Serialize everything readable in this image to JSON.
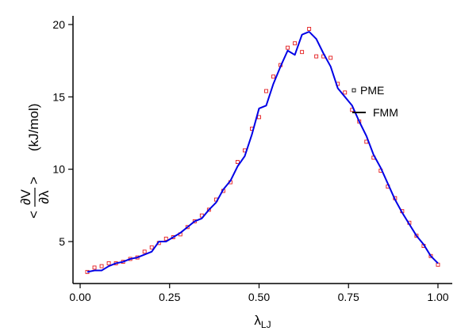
{
  "chart_data": {
    "type": "line",
    "xlabel": "λ",
    "xlabel_sub": "LJ",
    "ylabel_num": "∂V",
    "ylabel_den": "∂λ",
    "ylabel_lt": "<",
    "ylabel_gt": ">",
    "ylabel_units": "(kJ/mol)",
    "xlim": [
      -0.02,
      1.04
    ],
    "ylim": [
      2.1,
      20.6
    ],
    "xticks": [
      0,
      0.25,
      0.5,
      0.75,
      1
    ],
    "xtick_labels": [
      "0.00",
      "0.25",
      "0.50",
      "0.75",
      "1.00"
    ],
    "yticks": [
      5,
      10,
      15,
      20
    ],
    "ytick_labels": [
      "5",
      "10",
      "15",
      "20"
    ],
    "grid": false,
    "legend_position": "right",
    "series": [
      {
        "name": "PME",
        "style": "markers",
        "marker": "open-square",
        "color": "#e41a1c",
        "x": [
          0.02,
          0.04,
          0.06,
          0.08,
          0.1,
          0.12,
          0.14,
          0.16,
          0.18,
          0.2,
          0.22,
          0.24,
          0.26,
          0.28,
          0.3,
          0.32,
          0.34,
          0.36,
          0.38,
          0.4,
          0.42,
          0.44,
          0.46,
          0.48,
          0.5,
          0.52,
          0.54,
          0.56,
          0.58,
          0.6,
          0.62,
          0.64,
          0.66,
          0.68,
          0.7,
          0.72,
          0.74,
          0.76,
          0.78,
          0.8,
          0.82,
          0.84,
          0.86,
          0.88,
          0.9,
          0.92,
          0.94,
          0.96,
          0.98,
          1.0
        ],
        "y": [
          2.9,
          3.2,
          3.3,
          3.5,
          3.5,
          3.6,
          3.8,
          3.9,
          4.3,
          4.6,
          4.9,
          5.2,
          5.3,
          5.5,
          6.0,
          6.4,
          6.8,
          7.2,
          7.9,
          8.5,
          9.1,
          10.5,
          11.3,
          12.8,
          13.6,
          15.4,
          16.4,
          17.2,
          18.4,
          18.7,
          18.1,
          19.7,
          17.8,
          17.8,
          17.7,
          15.9,
          15.3,
          14.1,
          13.3,
          11.9,
          10.8,
          9.9,
          8.8,
          8.0,
          7.1,
          6.3,
          5.4,
          4.7,
          4.0,
          3.4
        ]
      },
      {
        "name": "FMM",
        "style": "line",
        "color": "#0000e6",
        "x": [
          0.02,
          0.04,
          0.06,
          0.08,
          0.1,
          0.12,
          0.14,
          0.16,
          0.18,
          0.2,
          0.22,
          0.24,
          0.26,
          0.28,
          0.3,
          0.32,
          0.34,
          0.36,
          0.38,
          0.4,
          0.42,
          0.44,
          0.46,
          0.48,
          0.5,
          0.52,
          0.54,
          0.56,
          0.58,
          0.6,
          0.62,
          0.64,
          0.66,
          0.68,
          0.7,
          0.72,
          0.74,
          0.76,
          0.78,
          0.8,
          0.82,
          0.84,
          0.86,
          0.88,
          0.9,
          0.92,
          0.94,
          0.96,
          0.98,
          1.0
        ],
        "y": [
          2.9,
          3.0,
          3.0,
          3.3,
          3.5,
          3.6,
          3.8,
          3.9,
          4.1,
          4.3,
          5.0,
          5.0,
          5.3,
          5.6,
          6.0,
          6.4,
          6.6,
          7.2,
          7.7,
          8.6,
          9.2,
          10.2,
          10.9,
          12.4,
          14.2,
          14.4,
          15.9,
          17.1,
          18.2,
          17.9,
          19.3,
          19.5,
          19.0,
          18.0,
          17.1,
          15.6,
          15.0,
          14.4,
          13.3,
          12.3,
          11.0,
          10.1,
          9.0,
          7.9,
          7.0,
          6.2,
          5.4,
          4.8,
          4.0,
          3.5
        ]
      }
    ]
  }
}
